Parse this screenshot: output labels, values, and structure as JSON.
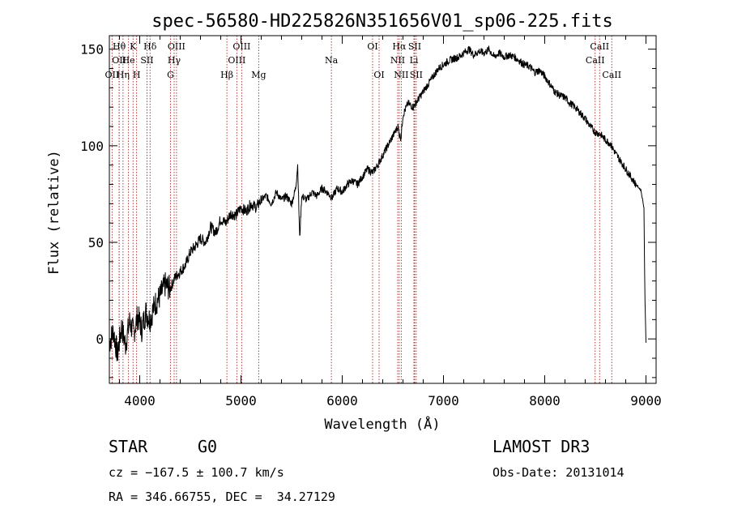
{
  "chart_data": {
    "type": "line",
    "title": "spec-56580-HD225826N351656V01_sp06-225.fits",
    "xlabel": "Wavelength (Å)",
    "ylabel": "Flux (relative)",
    "xlim": [
      3700,
      9100
    ],
    "ylim": [
      -23,
      157
    ],
    "xticks": [
      4000,
      5000,
      6000,
      7000,
      8000,
      9000
    ],
    "yticks": [
      0,
      50,
      100,
      150
    ],
    "x_minor_step": 200,
    "y_minor_step": 10,
    "series": [
      {
        "name": "flux",
        "x": [
          3700,
          3740,
          3780,
          3820,
          3860,
          3900,
          3940,
          3980,
          4020,
          4060,
          4100,
          4150,
          4200,
          4250,
          4300,
          4350,
          4400,
          4450,
          4500,
          4550,
          4600,
          4650,
          4700,
          4750,
          4800,
          4850,
          4900,
          4950,
          5000,
          5050,
          5100,
          5150,
          5200,
          5250,
          5300,
          5350,
          5400,
          5450,
          5500,
          5540,
          5560,
          5580,
          5600,
          5650,
          5700,
          5750,
          5800,
          5850,
          5900,
          5950,
          6000,
          6050,
          6100,
          6150,
          6200,
          6250,
          6300,
          6350,
          6400,
          6450,
          6500,
          6550,
          6563,
          6580,
          6600,
          6650,
          6700,
          6750,
          6800,
          6850,
          6900,
          6950,
          7000,
          7050,
          7100,
          7150,
          7200,
          7250,
          7300,
          7350,
          7400,
          7450,
          7500,
          7550,
          7600,
          7650,
          7700,
          7750,
          7800,
          7850,
          7900,
          7950,
          8000,
          8050,
          8100,
          8150,
          8200,
          8250,
          8300,
          8350,
          8400,
          8450,
          8500,
          8550,
          8600,
          8650,
          8700,
          8750,
          8800,
          8850,
          8900,
          8950,
          8980,
          8990,
          9000
        ],
        "values": [
          -2,
          4,
          -8,
          6,
          -3,
          9,
          3,
          12,
          5,
          14,
          10,
          18,
          22,
          28,
          26,
          32,
          35,
          38,
          45,
          48,
          52,
          50,
          58,
          55,
          62,
          60,
          65,
          64,
          68,
          66,
          70,
          68,
          72,
          74,
          70,
          76,
          72,
          74,
          70,
          78,
          90,
          52,
          74,
          72,
          76,
          74,
          78,
          76,
          73,
          78,
          76,
          80,
          82,
          80,
          84,
          88,
          86,
          90,
          95,
          100,
          105,
          110,
          106,
          104,
          116,
          122,
          120,
          124,
          128,
          132,
          136,
          140,
          142,
          144,
          145,
          146,
          148,
          150,
          147,
          149,
          148,
          150,
          146,
          148,
          146,
          147,
          146,
          144,
          142,
          141,
          138,
          139,
          136,
          132,
          128,
          126,
          125,
          122,
          120,
          117,
          114,
          110,
          107,
          106,
          103,
          101,
          96,
          92,
          88,
          84,
          80,
          77,
          68,
          20,
          -2
        ]
      }
    ],
    "lines": [
      {
        "label": "OII",
        "wave": 3727,
        "row": 2
      },
      {
        "label": "Hθ",
        "wave": 3797,
        "row": 0
      },
      {
        "label": "OII",
        "wave": 3797,
        "row": 1
      },
      {
        "label": "Hη",
        "wave": 3835,
        "row": 2
      },
      {
        "label": "He",
        "wave": 3889,
        "row": 1
      },
      {
        "label": "K",
        "wave": 3934,
        "row": 0
      },
      {
        "label": "H",
        "wave": 3969,
        "row": 2
      },
      {
        "label": "SII",
        "wave": 4072,
        "row": 1
      },
      {
        "label": "Hδ",
        "wave": 4102,
        "row": 0
      },
      {
        "label": "OIII",
        "wave": 4363,
        "row": 0
      },
      {
        "label": "Hγ",
        "wave": 4340,
        "row": 1
      },
      {
        "label": "G",
        "wave": 4304,
        "row": 2
      },
      {
        "label": "Hβ",
        "wave": 4861,
        "row": 2
      },
      {
        "label": "OIII",
        "wave": 4959,
        "row": 1
      },
      {
        "label": "OIII",
        "wave": 5007,
        "row": 0
      },
      {
        "label": "Mg",
        "wave": 5175,
        "row": 2
      },
      {
        "label": "Na",
        "wave": 5893,
        "row": 1
      },
      {
        "label": "OI",
        "wave": 6300,
        "row": 0
      },
      {
        "label": "OI",
        "wave": 6364,
        "row": 2
      },
      {
        "label": "NII",
        "wave": 6548,
        "row": 1
      },
      {
        "label": "Hα",
        "wave": 6563,
        "row": 0
      },
      {
        "label": "NII",
        "wave": 6583,
        "row": 2
      },
      {
        "label": "SII",
        "wave": 6716,
        "row": 0
      },
      {
        "label": "Li",
        "wave": 6708,
        "row": 1
      },
      {
        "label": "SII",
        "wave": 6731,
        "row": 2
      },
      {
        "label": "CaII",
        "wave": 8498,
        "row": 1
      },
      {
        "label": "CaII",
        "wave": 8542,
        "row": 0
      },
      {
        "label": "CaII",
        "wave": 8662,
        "row": 2
      }
    ]
  },
  "info": {
    "class": "STAR",
    "subclass": "G0",
    "survey": "LAMOST DR3",
    "cz": "cz = −167.5 ± 100.7 km/s",
    "obs_date": "Obs-Date: 20131014",
    "coords": "RA = 346.66755, DEC =  34.27129"
  }
}
